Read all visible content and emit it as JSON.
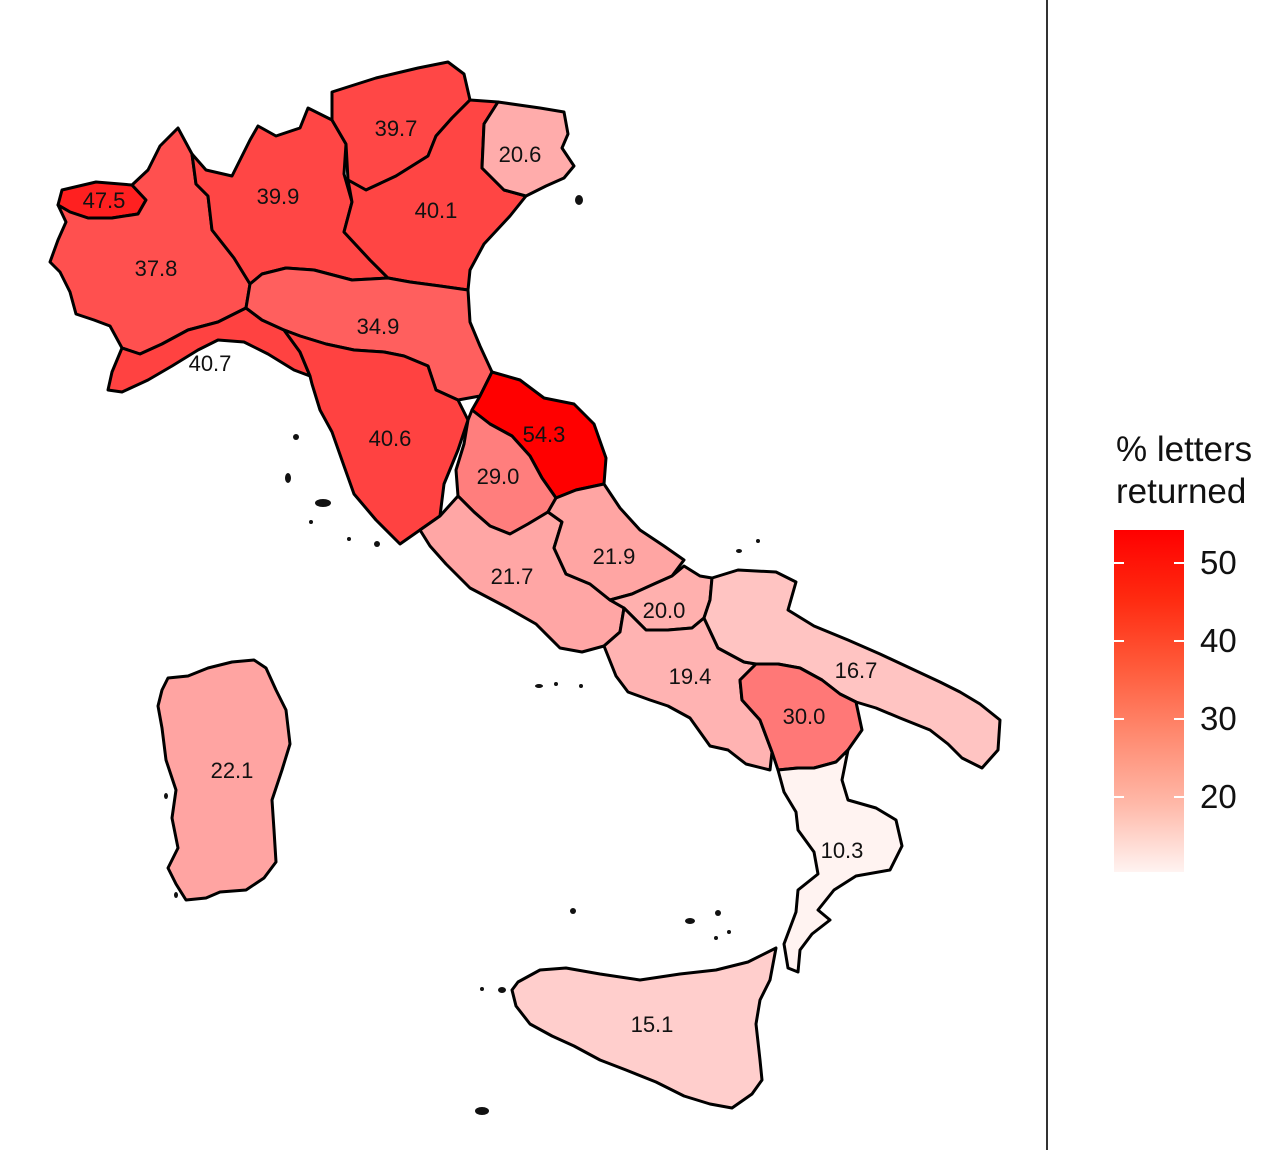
{
  "chart_data": {
    "type": "choropleth",
    "legend": {
      "title_line1": "% letters",
      "title_line2": "returned",
      "ticks": [
        "50",
        "40",
        "30",
        "20"
      ],
      "tick_values": [
        50,
        40,
        30,
        20
      ],
      "range": [
        10.3,
        54.3
      ],
      "low_color": "#fff3f1",
      "high_color": "#ff0000"
    },
    "regions": [
      {
        "id": "valle-daosta",
        "value": "47.5"
      },
      {
        "id": "piedmont",
        "value": "37.8"
      },
      {
        "id": "lombardy",
        "value": "39.9"
      },
      {
        "id": "trentino",
        "value": "39.7"
      },
      {
        "id": "veneto",
        "value": "40.1"
      },
      {
        "id": "friuli",
        "value": "20.6"
      },
      {
        "id": "liguria",
        "value": "40.7"
      },
      {
        "id": "emilia-romagna",
        "value": "34.9"
      },
      {
        "id": "tuscany",
        "value": "40.6"
      },
      {
        "id": "marche",
        "value": "54.3"
      },
      {
        "id": "umbria",
        "value": "29.0"
      },
      {
        "id": "lazio",
        "value": "21.7"
      },
      {
        "id": "abruzzo",
        "value": "21.9"
      },
      {
        "id": "molise",
        "value": "20.0"
      },
      {
        "id": "campania",
        "value": "19.4"
      },
      {
        "id": "apulia",
        "value": "16.7"
      },
      {
        "id": "basilicata",
        "value": "30.0"
      },
      {
        "id": "calabria",
        "value": "10.3"
      },
      {
        "id": "sicily",
        "value": "15.1"
      },
      {
        "id": "sardinia",
        "value": "22.1"
      }
    ]
  }
}
